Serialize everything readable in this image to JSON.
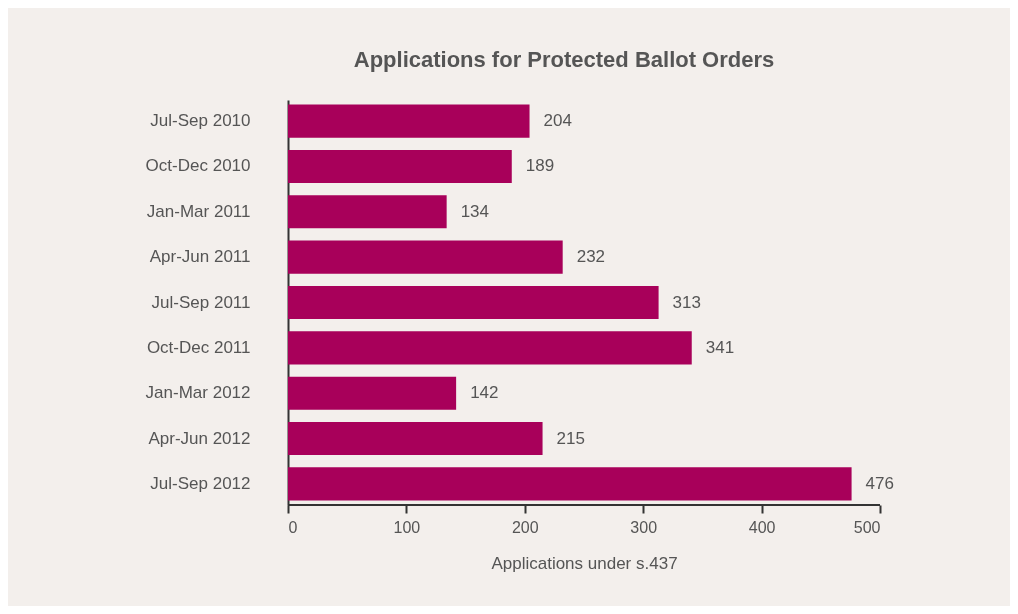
{
  "chart_data": {
    "type": "bar",
    "orientation": "horizontal",
    "title": "Applications for Protected Ballot Orders",
    "xlabel": "Applications under s.437",
    "categories": [
      "Jul-Sep 2010",
      "Oct-Dec 2010",
      "Jan-Mar 2011",
      "Apr-Jun 2011",
      "Jul-Sep 2011",
      "Oct-Dec 2011",
      "Jan-Mar 2012",
      "Apr-Jun 2012",
      "Jul-Sep 2012"
    ],
    "values": [
      204,
      189,
      134,
      232,
      313,
      341,
      142,
      215,
      476
    ],
    "color": "#a8005a",
    "xlim": [
      0,
      500
    ],
    "xticks": [
      0,
      100,
      200,
      300,
      400,
      500
    ],
    "data_labels": true
  }
}
